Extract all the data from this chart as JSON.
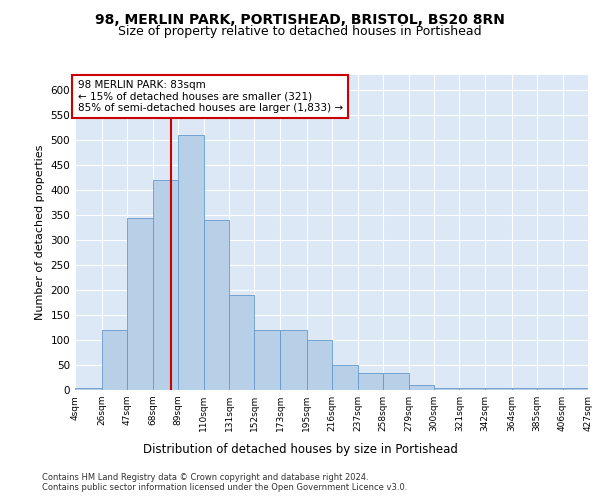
{
  "title1": "98, MERLIN PARK, PORTISHEAD, BRISTOL, BS20 8RN",
  "title2": "Size of property relative to detached houses in Portishead",
  "xlabel": "Distribution of detached houses by size in Portishead",
  "ylabel": "Number of detached properties",
  "footnote1": "Contains HM Land Registry data © Crown copyright and database right 2024.",
  "footnote2": "Contains public sector information licensed under the Open Government Licence v3.0.",
  "annotation_line1": "98 MERLIN PARK: 83sqm",
  "annotation_line2": "← 15% of detached houses are smaller (321)",
  "annotation_line3": "85% of semi-detached houses are larger (1,833) →",
  "bar_color": "#b8cfe8",
  "bar_edge_color": "#6699cc",
  "ref_line_color": "#cc0000",
  "ref_line_x": 83,
  "bin_edges": [
    4,
    26,
    47,
    68,
    89,
    110,
    131,
    152,
    173,
    195,
    216,
    237,
    258,
    279,
    300,
    321,
    342,
    364,
    385,
    406,
    427
  ],
  "bar_heights": [
    5,
    120,
    345,
    420,
    510,
    340,
    190,
    120,
    120,
    100,
    50,
    35,
    35,
    10,
    5,
    5,
    5,
    5,
    5,
    5
  ],
  "ylim": [
    0,
    630
  ],
  "yticks": [
    0,
    50,
    100,
    150,
    200,
    250,
    300,
    350,
    400,
    450,
    500,
    550,
    600
  ],
  "background_color": "#dce8f5",
  "grid_color": "#ffffff",
  "fig_background": "#ffffff",
  "annotation_box_facecolor": "#ffffff",
  "annotation_box_edgecolor": "#cc0000",
  "title1_fontsize": 10,
  "title2_fontsize": 9
}
